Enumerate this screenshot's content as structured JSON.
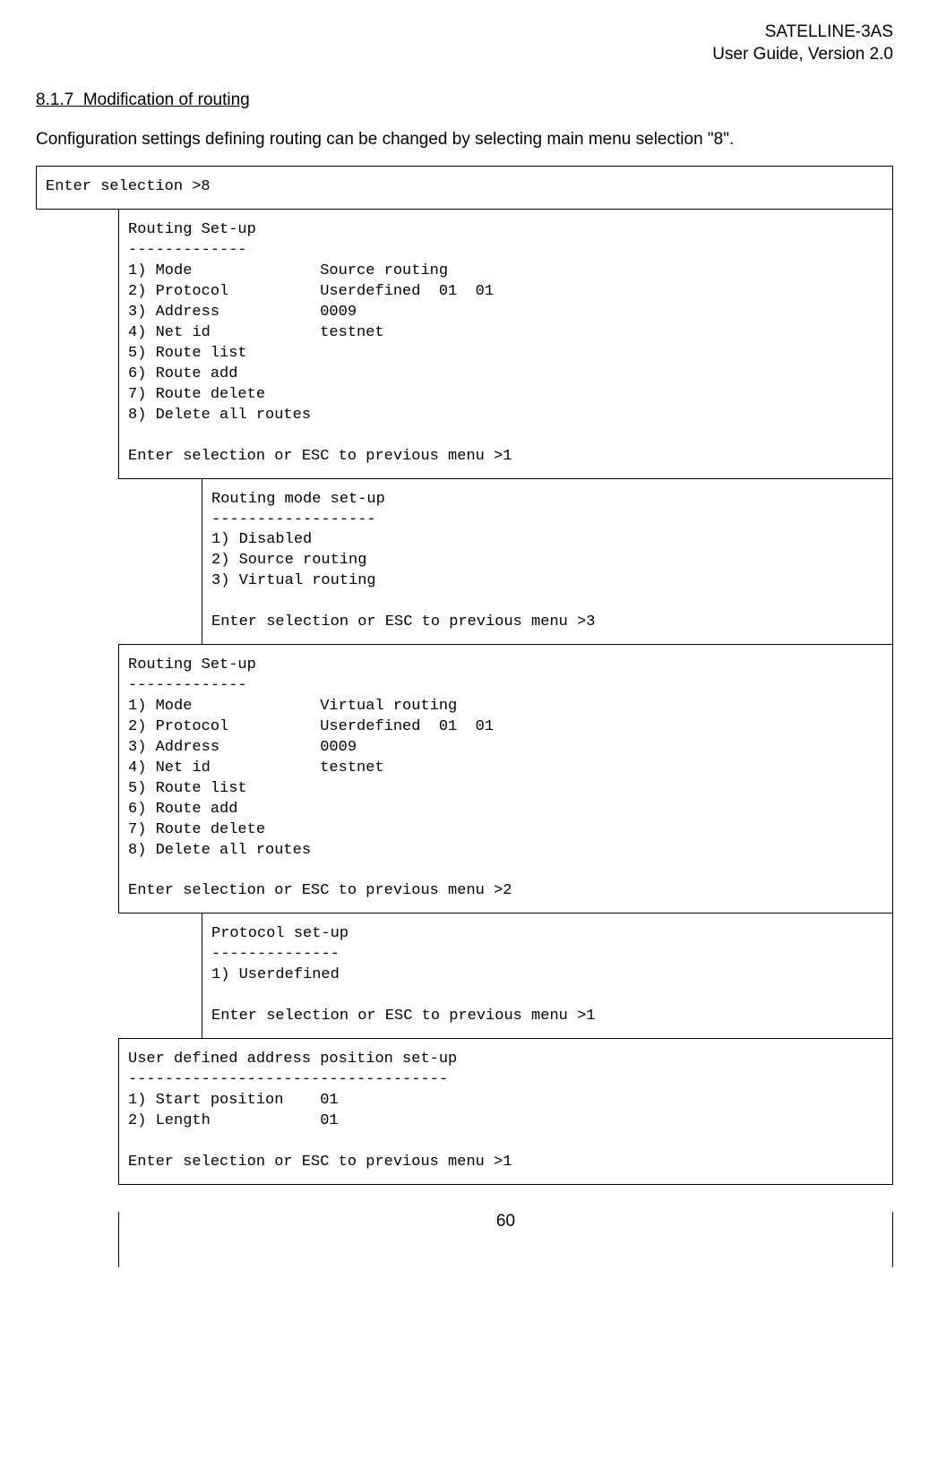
{
  "header": {
    "line1": "SATELLINE-3AS",
    "line2": "User Guide, Version 2.0"
  },
  "section": {
    "number": "8.1.7",
    "title": "Modification of routing"
  },
  "intro": "Configuration settings defining routing can be changed by selecting main menu selection \"8\".",
  "terminal": {
    "box1": "Enter selection >8",
    "box2": "Routing Set-up\n-------------\n1) Mode              Source routing\n2) Protocol          Userdefined  01  01\n3) Address           0009\n4) Net id            testnet\n5) Route list\n6) Route add\n7) Route delete\n8) Delete all routes\n\nEnter selection or ESC to previous menu >1",
    "box3": "Routing mode set-up\n------------------\n1) Disabled\n2) Source routing\n3) Virtual routing\n\nEnter selection or ESC to previous menu >3",
    "box4": "Routing Set-up\n-------------\n1) Mode              Virtual routing\n2) Protocol          Userdefined  01  01\n3) Address           0009\n4) Net id            testnet\n5) Route list\n6) Route add\n7) Route delete\n8) Delete all routes\n\nEnter selection or ESC to previous menu >2",
    "box5": "Protocol set-up\n--------------\n1) Userdefined\n\nEnter selection or ESC to previous menu >1",
    "box6": "User defined address position set-up\n-----------------------------------\n1) Start position    01\n2) Length            01\n\nEnter selection or ESC to previous menu >1"
  },
  "page_number": "60",
  "colors": {
    "text": "#000000",
    "background": "#ffffff",
    "border": "#000000"
  },
  "fonts": {
    "body_family": "Century Gothic, Arial, sans-serif",
    "mono_family": "Courier New, Courier, monospace",
    "body_size_pt": 14,
    "mono_size_pt": 13
  }
}
